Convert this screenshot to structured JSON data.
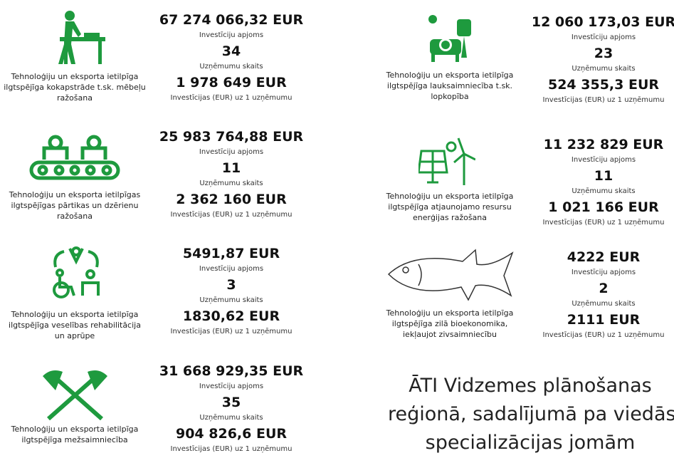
{
  "sectors": [
    {
      "description": "Tehnoloģiju un eksporta ietilpīga ilgtspējīga kokapstrāde t.sk. mēbeļu ražošana",
      "stats": [
        {
          "value": "67 274 066,32 EUR",
          "label": "Investīciju apjoms"
        },
        {
          "value": "34",
          "label": "Uzņēmumu skaits"
        },
        {
          "value": "1 978 649 EUR",
          "label": "Investīcijas (EUR) uz 1 uzņēmumu"
        }
      ]
    },
    {
      "description": "Tehnoloģiju un eksporta ietilpīgas ilgtspējīgas pārtikas un dzērienu ražošana",
      "stats": [
        {
          "value": "25 983 764,88 EUR",
          "label": "Investīciju apjoms"
        },
        {
          "value": "11",
          "label": "Uzņēmumu skaits"
        },
        {
          "value": "2 362 160 EUR",
          "label": "Investīcijas (EUR) uz 1 uzņēmumu"
        }
      ]
    },
    {
      "description": "Tehnoloģiju un eksporta ietilpīga ilgtspējīga veselības rehabilitācija un aprūpe",
      "stats": [
        {
          "value": "5491,87 EUR",
          "label": "Investīciju apjoms"
        },
        {
          "value": "3",
          "label": "Uzņēmumu skaits"
        },
        {
          "value": "1830,62 EUR",
          "label": "Investīcijas (EUR) uz 1 uzņēmumu"
        }
      ]
    },
    {
      "description": "Tehnoloģiju un eksporta ietilpīga ilgtspējīga mežsaimniecība",
      "stats": [
        {
          "value": "31 668 929,35 EUR",
          "label": "Investīciju apjoms"
        },
        {
          "value": "35",
          "label": "Uzņēmumu skaits"
        },
        {
          "value": "904 826,6 EUR",
          "label": "Investīcijas (EUR) uz 1 uzņēmumu"
        }
      ]
    },
    {
      "description": "Tehnoloģiju un eksporta ietilpīga ilgtspējīga lauksaimniecība t.sk. lopkopība",
      "stats": [
        {
          "value": "12 060 173,03 EUR",
          "label": "Investīciju apjoms"
        },
        {
          "value": "23",
          "label": "Uzņēmumu skaits"
        },
        {
          "value": "524 355,3 EUR",
          "label": "Investīcijas (EUR) uz 1 uzņēmumu"
        }
      ]
    },
    {
      "description": "Tehnoloģiju un eksporta ietilpīga ilgtspējīga atjaunojamo resursu enerģijas ražošana",
      "stats": [
        {
          "value": "11 232 829 EUR",
          "label": "Investīciju apjoms"
        },
        {
          "value": "11",
          "label": "Uzņēmumu skaits"
        },
        {
          "value": "1 021 166 EUR",
          "label": "Investīcijas (EUR) uz 1 uzņēmumu"
        }
      ]
    },
    {
      "description": "Tehnoloģiju un eksporta ietilpīga ilgtspējīga zilā bioekonomika, iekļaujot zivsaimniecību",
      "stats": [
        {
          "value": "4222 EUR",
          "label": "Investīciju apjoms"
        },
        {
          "value": "2",
          "label": "Uzņēmumu skaits"
        },
        {
          "value": "2111 EUR",
          "label": "Investīcijas (EUR) uz 1 uzņēmumu"
        }
      ]
    }
  ],
  "title": [
    "ĀTI Vidzemes plānošanas",
    "reģionā, sadalījumā pa viedās",
    "specializācijas jomām"
  ]
}
